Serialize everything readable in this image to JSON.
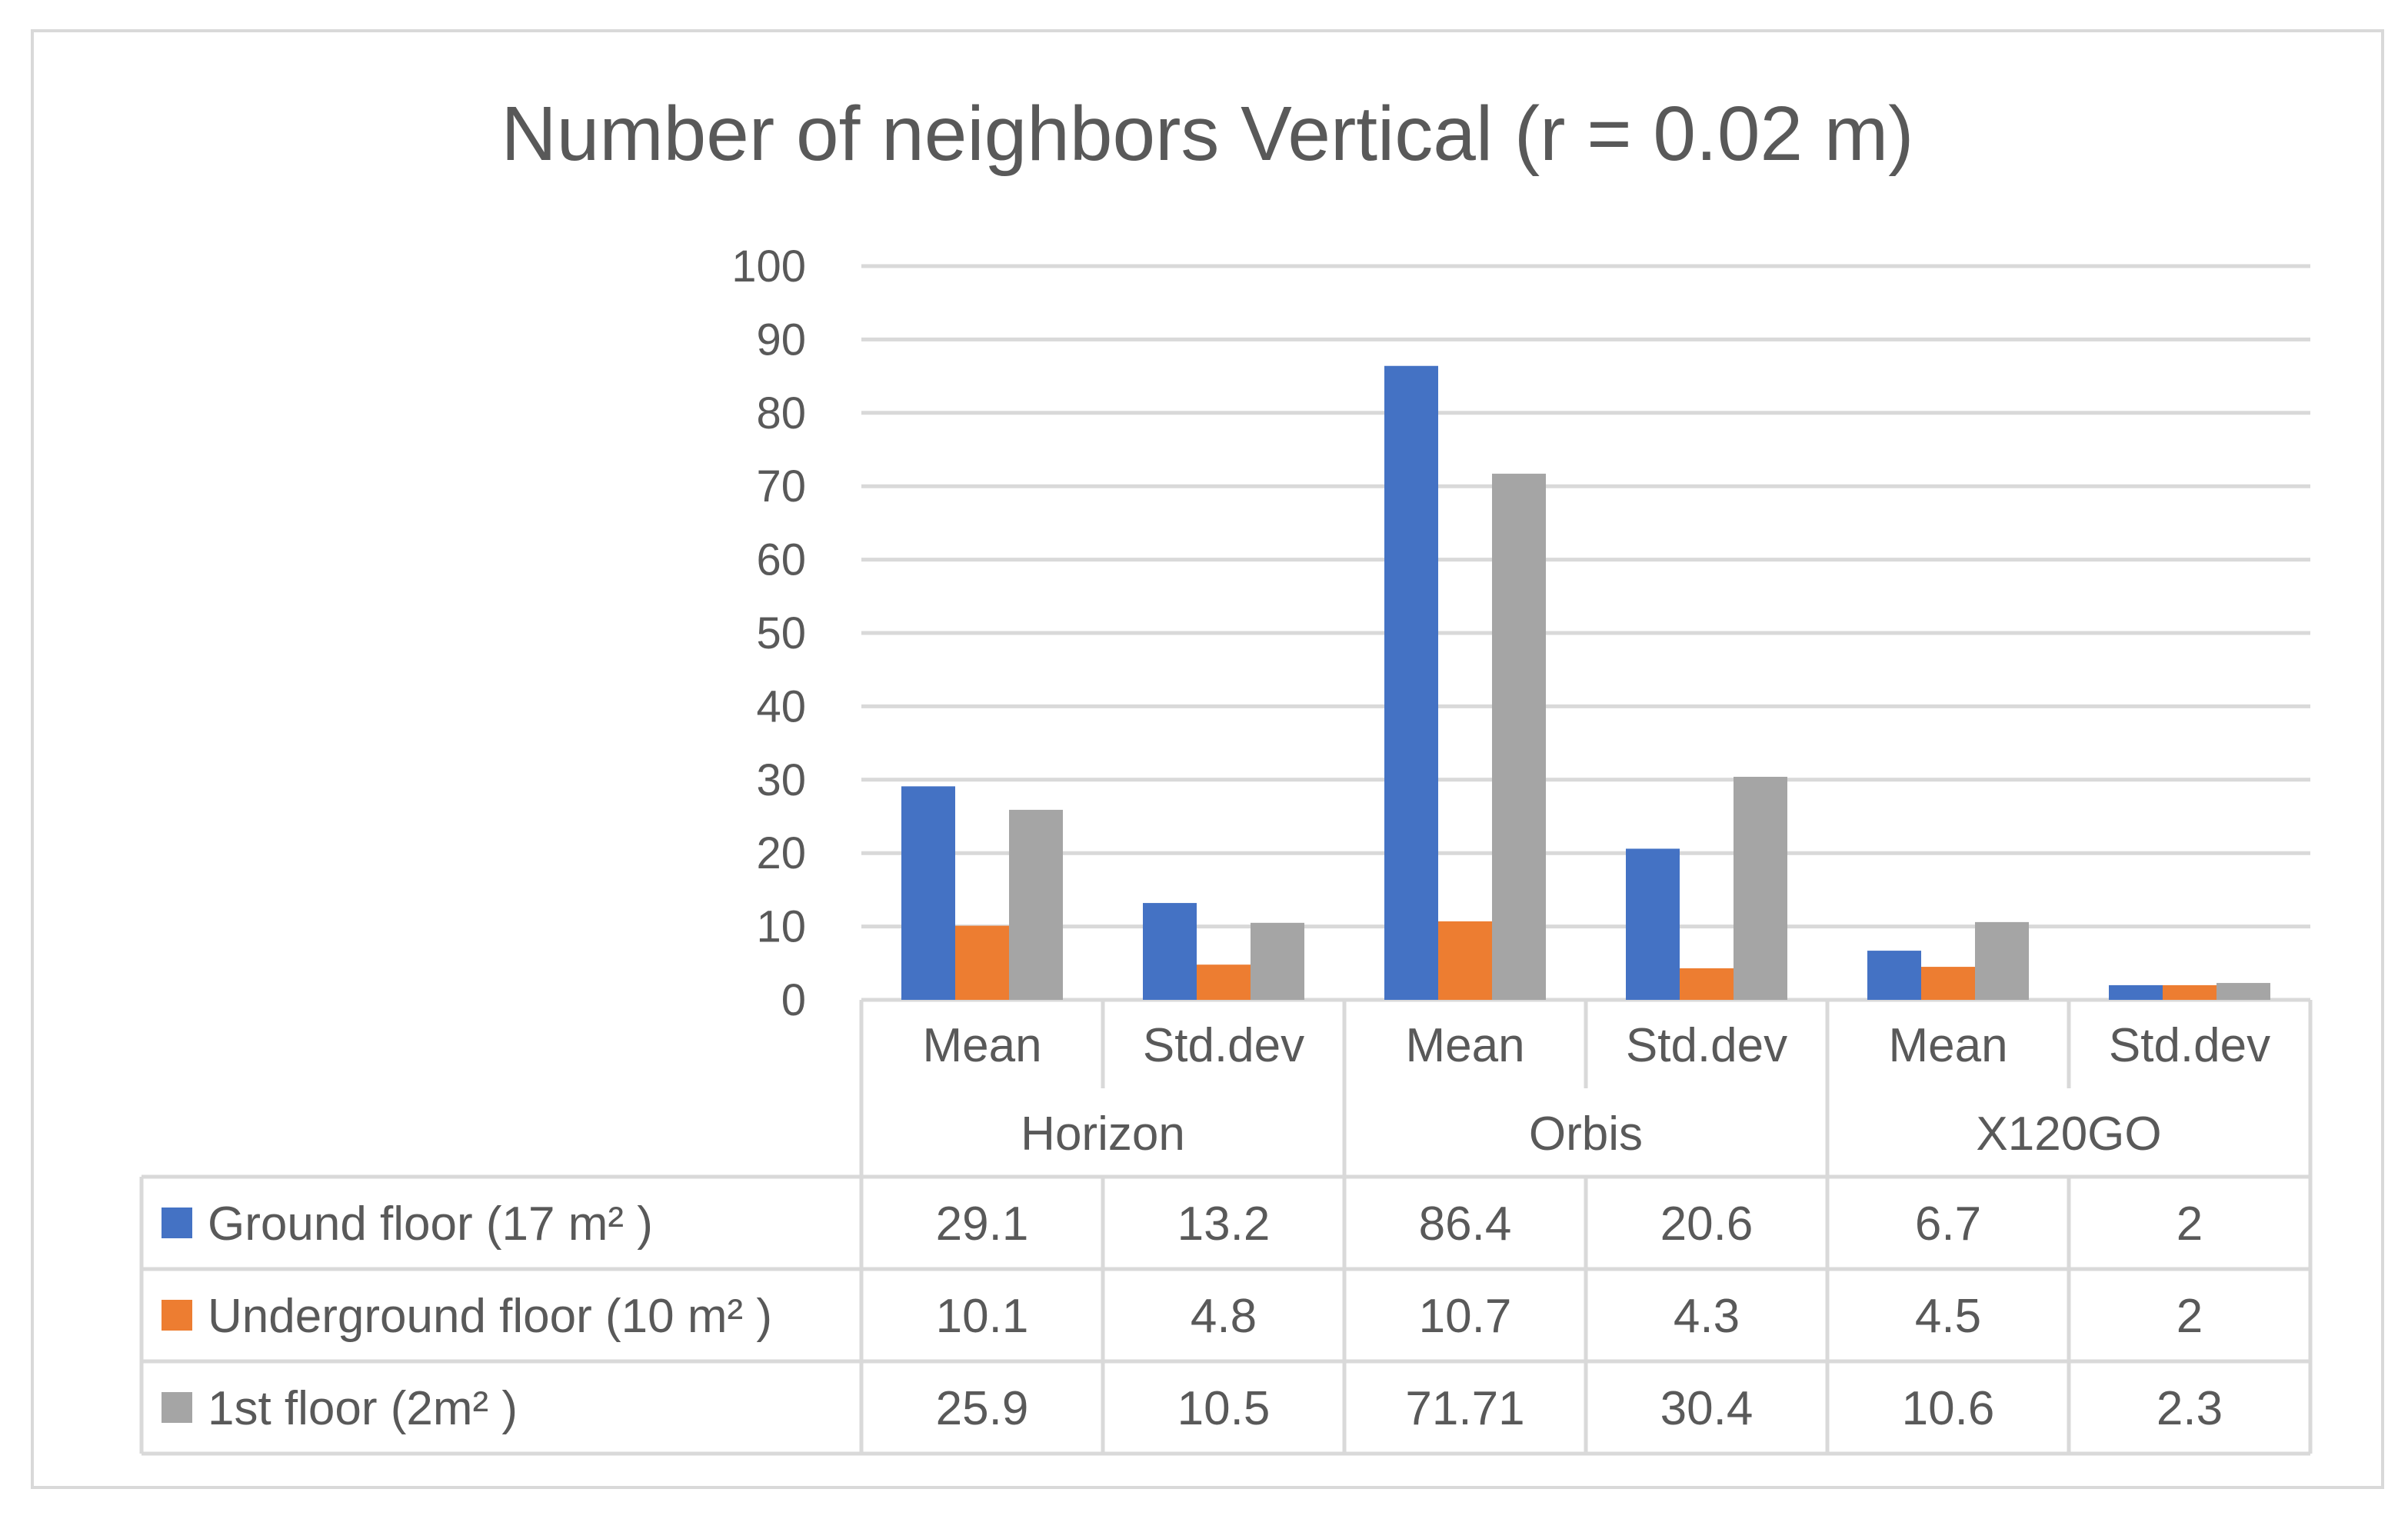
{
  "chart_data": {
    "type": "bar",
    "title": "Number of neighbors Vertical (r = 0.02 m)",
    "xlabel": "",
    "ylabel": "",
    "ylim": [
      0,
      100
    ],
    "yticks": [
      0,
      10,
      20,
      30,
      40,
      50,
      60,
      70,
      80,
      90,
      100
    ],
    "grid": true,
    "legend": "data-table-left",
    "groups": [
      "Horizon",
      "Orbis",
      "X120GO"
    ],
    "categories": [
      "Mean",
      "Std.dev",
      "Mean",
      "Std.dev",
      "Mean",
      "Std.dev"
    ],
    "series": [
      {
        "name": "Ground floor (17 m² )",
        "color": "#4472c4",
        "values": [
          29.1,
          13.2,
          86.4,
          20.6,
          6.7,
          2
        ],
        "labels": [
          "29.1",
          "13.2",
          "86.4",
          "20.6",
          "6.7",
          "2"
        ]
      },
      {
        "name": "Underground floor (10 m² )",
        "color": "#ed7d31",
        "values": [
          10.1,
          4.8,
          10.7,
          4.3,
          4.5,
          2
        ],
        "labels": [
          "10.1",
          "4.8",
          "10.7",
          "4.3",
          "4.5",
          "2"
        ]
      },
      {
        "name": "1st floor (2m² )",
        "color": "#a5a5a5",
        "values": [
          25.9,
          10.5,
          71.71,
          30.4,
          10.6,
          2.3
        ],
        "labels": [
          "25.9",
          "10.5",
          "71.71",
          "30.4",
          "10.6",
          "2.3"
        ]
      }
    ]
  }
}
